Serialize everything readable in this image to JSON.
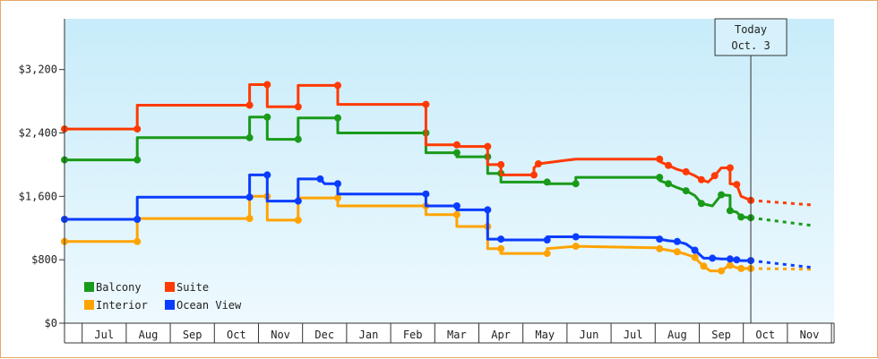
{
  "chart_data": {
    "type": "line",
    "x_unit": "month",
    "x_start": "Jun",
    "categories": [
      "Jul",
      "Aug",
      "Sep",
      "Oct",
      "Nov",
      "Dec",
      "Jan",
      "Feb",
      "Mar",
      "Apr",
      "May",
      "Jun",
      "Jul",
      "Aug",
      "Sep",
      "Oct",
      "Nov"
    ],
    "ylim": [
      0,
      3840
    ],
    "yticks": [
      0,
      800,
      1600,
      2400,
      3200
    ],
    "ytick_labels": [
      "$0",
      "$800",
      "$1,600",
      "$2,400",
      "$3,200"
    ],
    "today": {
      "label_line1": "Today",
      "label_line2": "Oct. 3",
      "x": 15.57
    },
    "legend": {
      "placement": "bottom-left"
    },
    "grid": false,
    "series": [
      {
        "name": "Balcony",
        "color": "#1a9a1a",
        "points": [
          [
            0.0,
            2060
          ],
          [
            1.65,
            2060
          ],
          [
            1.65,
            2340
          ],
          [
            4.2,
            2340
          ],
          [
            4.2,
            2600
          ],
          [
            4.6,
            2600
          ],
          [
            4.6,
            2320
          ],
          [
            5.3,
            2320
          ],
          [
            5.3,
            2590
          ],
          [
            6.2,
            2590
          ],
          [
            6.2,
            2400
          ],
          [
            8.2,
            2400
          ],
          [
            8.2,
            2150
          ],
          [
            8.9,
            2150
          ],
          [
            8.9,
            2100
          ],
          [
            9.6,
            2100
          ],
          [
            9.6,
            1890
          ],
          [
            9.9,
            1890
          ],
          [
            9.9,
            1780
          ],
          [
            10.95,
            1780
          ],
          [
            10.95,
            1760
          ],
          [
            11.6,
            1760
          ],
          [
            11.6,
            1840
          ],
          [
            13.5,
            1840
          ],
          [
            13.5,
            1800
          ],
          [
            13.7,
            1760
          ],
          [
            13.9,
            1710
          ],
          [
            14.1,
            1670
          ],
          [
            14.3,
            1610
          ],
          [
            14.45,
            1510
          ],
          [
            14.7,
            1480
          ],
          [
            14.9,
            1620
          ],
          [
            15.1,
            1610
          ],
          [
            15.1,
            1420
          ],
          [
            15.25,
            1400
          ],
          [
            15.35,
            1340
          ],
          [
            15.57,
            1330
          ]
        ],
        "projection": [
          [
            15.57,
            1330
          ],
          [
            17.0,
            1230
          ]
        ]
      },
      {
        "name": "Suite",
        "color": "#ff3a00",
        "points": [
          [
            0.0,
            2450
          ],
          [
            1.65,
            2450
          ],
          [
            1.65,
            2750
          ],
          [
            4.2,
            2750
          ],
          [
            4.2,
            3010
          ],
          [
            4.6,
            3010
          ],
          [
            4.6,
            2730
          ],
          [
            5.3,
            2730
          ],
          [
            5.3,
            3000
          ],
          [
            6.2,
            3000
          ],
          [
            6.2,
            2760
          ],
          [
            8.2,
            2760
          ],
          [
            8.2,
            2250
          ],
          [
            8.9,
            2250
          ],
          [
            8.9,
            2230
          ],
          [
            9.6,
            2230
          ],
          [
            9.6,
            2000
          ],
          [
            9.9,
            2000
          ],
          [
            9.9,
            1870
          ],
          [
            10.65,
            1870
          ],
          [
            10.65,
            1960
          ],
          [
            10.75,
            2010
          ],
          [
            11.6,
            2070
          ],
          [
            13.5,
            2070
          ],
          [
            13.5,
            2040
          ],
          [
            13.7,
            1990
          ],
          [
            13.9,
            1940
          ],
          [
            14.1,
            1910
          ],
          [
            14.3,
            1860
          ],
          [
            14.45,
            1810
          ],
          [
            14.6,
            1780
          ],
          [
            14.75,
            1860
          ],
          [
            14.9,
            1960
          ],
          [
            15.1,
            1960
          ],
          [
            15.1,
            1760
          ],
          [
            15.25,
            1750
          ],
          [
            15.35,
            1600
          ],
          [
            15.57,
            1550
          ]
        ],
        "projection": [
          [
            15.57,
            1550
          ],
          [
            17.0,
            1490
          ]
        ]
      },
      {
        "name": "Interior",
        "color": "#ffa300",
        "points": [
          [
            0.0,
            1030
          ],
          [
            1.65,
            1030
          ],
          [
            1.65,
            1320
          ],
          [
            4.2,
            1320
          ],
          [
            4.2,
            1600
          ],
          [
            4.6,
            1600
          ],
          [
            4.6,
            1300
          ],
          [
            5.3,
            1300
          ],
          [
            5.3,
            1580
          ],
          [
            6.2,
            1580
          ],
          [
            6.2,
            1480
          ],
          [
            8.2,
            1480
          ],
          [
            8.2,
            1370
          ],
          [
            8.9,
            1370
          ],
          [
            8.9,
            1220
          ],
          [
            9.6,
            1220
          ],
          [
            9.6,
            940
          ],
          [
            9.9,
            940
          ],
          [
            9.9,
            880
          ],
          [
            10.95,
            880
          ],
          [
            10.95,
            940
          ],
          [
            11.6,
            970
          ],
          [
            13.5,
            950
          ],
          [
            13.5,
            940
          ],
          [
            13.7,
            920
          ],
          [
            13.9,
            900
          ],
          [
            14.1,
            870
          ],
          [
            14.3,
            830
          ],
          [
            14.4,
            770
          ],
          [
            14.5,
            720
          ],
          [
            14.65,
            660
          ],
          [
            14.9,
            660
          ],
          [
            15.1,
            740
          ],
          [
            15.1,
            730
          ],
          [
            15.25,
            700
          ],
          [
            15.35,
            690
          ],
          [
            15.57,
            690
          ]
        ],
        "projection": [
          [
            15.57,
            690
          ],
          [
            17.0,
            680
          ]
        ]
      },
      {
        "name": "Ocean View",
        "color": "#0a3cff",
        "points": [
          [
            0.0,
            1310
          ],
          [
            1.65,
            1310
          ],
          [
            1.65,
            1590
          ],
          [
            4.2,
            1590
          ],
          [
            4.2,
            1870
          ],
          [
            4.6,
            1870
          ],
          [
            4.6,
            1540
          ],
          [
            5.3,
            1540
          ],
          [
            5.3,
            1820
          ],
          [
            5.8,
            1820
          ],
          [
            5.9,
            1760
          ],
          [
            6.2,
            1760
          ],
          [
            6.2,
            1630
          ],
          [
            8.2,
            1630
          ],
          [
            8.2,
            1480
          ],
          [
            8.9,
            1480
          ],
          [
            8.9,
            1430
          ],
          [
            9.6,
            1430
          ],
          [
            9.6,
            1060
          ],
          [
            9.9,
            1060
          ],
          [
            9.9,
            1050
          ],
          [
            10.95,
            1050
          ],
          [
            10.95,
            1090
          ],
          [
            11.6,
            1090
          ],
          [
            13.5,
            1080
          ],
          [
            13.5,
            1060
          ],
          [
            13.7,
            1040
          ],
          [
            13.9,
            1030
          ],
          [
            14.1,
            1000
          ],
          [
            14.3,
            920
          ],
          [
            14.5,
            820
          ],
          [
            14.7,
            820
          ],
          [
            14.9,
            810
          ],
          [
            15.1,
            810
          ],
          [
            15.1,
            800
          ],
          [
            15.25,
            800
          ],
          [
            15.35,
            790
          ],
          [
            15.57,
            790
          ]
        ],
        "projection": [
          [
            15.57,
            790
          ],
          [
            17.0,
            700
          ]
        ]
      }
    ],
    "legend_order": [
      "Balcony",
      "Suite",
      "Interior",
      "Ocean View"
    ]
  }
}
